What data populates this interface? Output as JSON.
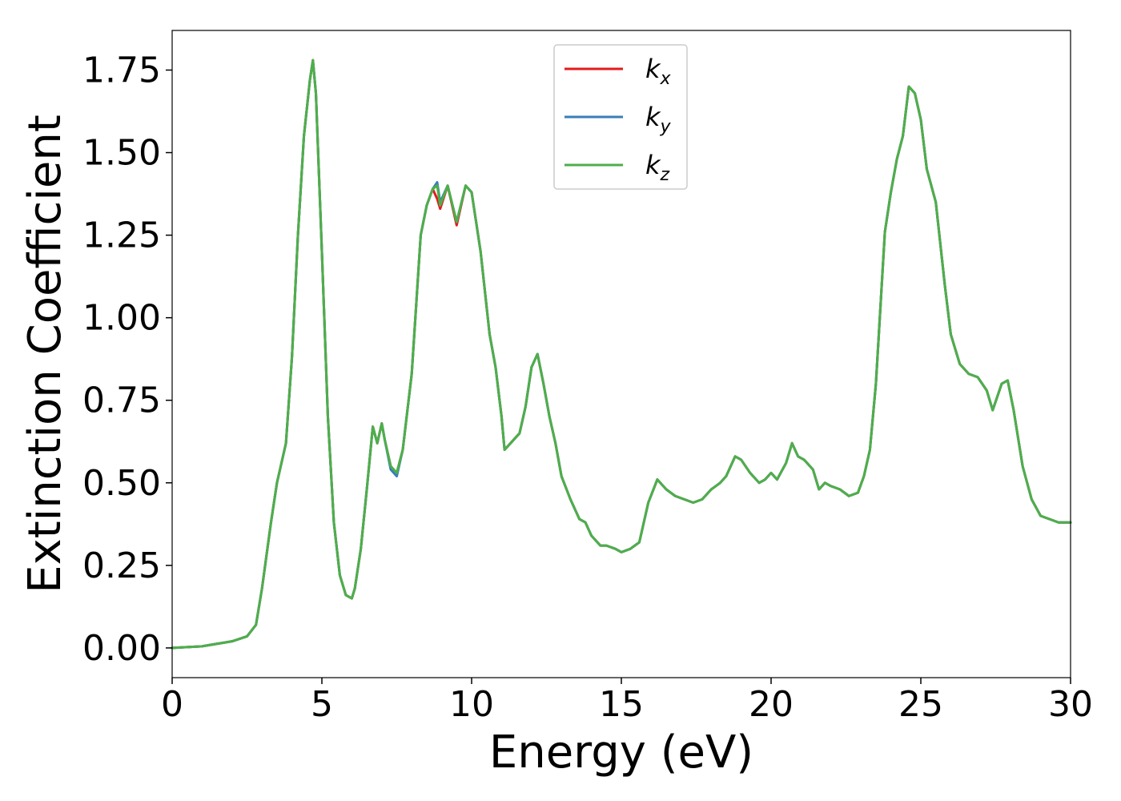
{
  "chart_data": {
    "type": "line",
    "title": "",
    "xlabel": "Energy (eV)",
    "ylabel": "Extinction Coefficient",
    "xlim": [
      0,
      30
    ],
    "ylim": [
      -0.09,
      1.87
    ],
    "xticks": [
      0,
      5,
      10,
      15,
      20,
      25,
      30
    ],
    "xtick_labels": [
      "0",
      "5",
      "10",
      "15",
      "20",
      "25",
      "30"
    ],
    "yticks": [
      0.0,
      0.25,
      0.5,
      0.75,
      1.0,
      1.25,
      1.5,
      1.75
    ],
    "ytick_labels": [
      "0.00",
      "0.25",
      "0.50",
      "0.75",
      "1.00",
      "1.25",
      "1.50",
      "1.75"
    ],
    "grid": false,
    "legend_position": "top-center",
    "series": [
      {
        "name": "k",
        "subscript": "x",
        "color": "#e41a1c",
        "x": [
          0,
          1,
          2,
          2.5,
          2.8,
          3,
          3.3,
          3.5,
          3.8,
          4,
          4.2,
          4.4,
          4.6,
          4.7,
          4.8,
          5,
          5.2,
          5.4,
          5.6,
          5.8,
          6,
          6.1,
          6.3,
          6.5,
          6.7,
          6.85,
          7,
          7.1,
          7.3,
          7.5,
          7.7,
          8,
          8.3,
          8.5,
          8.7,
          8.85,
          8.95,
          9.2,
          9.5,
          9.8,
          10,
          10.3,
          10.6,
          10.8,
          11,
          11.1,
          11.3,
          11.6,
          11.8,
          12,
          12.2,
          12.4,
          12.6,
          12.8,
          13,
          13.3,
          13.6,
          13.8,
          14,
          14.3,
          14.5,
          14.8,
          15,
          15.3,
          15.6,
          15.9,
          16.2,
          16.5,
          16.8,
          17.1,
          17.4,
          17.7,
          18,
          18.3,
          18.5,
          18.8,
          19,
          19.3,
          19.6,
          19.8,
          20,
          20.2,
          20.5,
          20.7,
          20.9,
          21.1,
          21.4,
          21.6,
          21.8,
          22,
          22.3,
          22.6,
          22.9,
          23.1,
          23.3,
          23.5,
          23.8,
          24,
          24.2,
          24.4,
          24.6,
          24.8,
          25,
          25.2,
          25.5,
          25.8,
          26,
          26.3,
          26.6,
          26.9,
          27.2,
          27.4,
          27.7,
          27.9,
          28.1,
          28.4,
          28.7,
          29,
          29.3,
          29.6,
          30
        ],
        "y": [
          0,
          0.005,
          0.02,
          0.035,
          0.07,
          0.18,
          0.38,
          0.5,
          0.62,
          0.88,
          1.25,
          1.55,
          1.72,
          1.78,
          1.68,
          1.2,
          0.7,
          0.38,
          0.22,
          0.16,
          0.15,
          0.18,
          0.3,
          0.48,
          0.67,
          0.62,
          0.68,
          0.63,
          0.55,
          0.53,
          0.6,
          0.83,
          1.25,
          1.34,
          1.39,
          1.36,
          1.33,
          1.4,
          1.28,
          1.4,
          1.38,
          1.2,
          0.95,
          0.85,
          0.7,
          0.6,
          0.62,
          0.65,
          0.73,
          0.85,
          0.89,
          0.8,
          0.7,
          0.62,
          0.52,
          0.45,
          0.39,
          0.38,
          0.34,
          0.31,
          0.31,
          0.3,
          0.29,
          0.3,
          0.32,
          0.44,
          0.51,
          0.48,
          0.46,
          0.45,
          0.44,
          0.45,
          0.48,
          0.5,
          0.52,
          0.58,
          0.57,
          0.53,
          0.5,
          0.51,
          0.53,
          0.51,
          0.56,
          0.62,
          0.58,
          0.57,
          0.54,
          0.48,
          0.5,
          0.49,
          0.48,
          0.46,
          0.47,
          0.52,
          0.6,
          0.8,
          1.26,
          1.38,
          1.48,
          1.55,
          1.7,
          1.68,
          1.6,
          1.45,
          1.35,
          1.1,
          0.95,
          0.86,
          0.83,
          0.82,
          0.78,
          0.72,
          0.8,
          0.81,
          0.72,
          0.55,
          0.45,
          0.4,
          0.39,
          0.38,
          0.38
        ]
      },
      {
        "name": "k",
        "subscript": "y",
        "color": "#377eb8",
        "x": [
          0,
          1,
          2,
          2.5,
          2.8,
          3,
          3.3,
          3.5,
          3.8,
          4,
          4.2,
          4.4,
          4.6,
          4.7,
          4.8,
          5,
          5.2,
          5.4,
          5.6,
          5.8,
          6,
          6.1,
          6.3,
          6.5,
          6.7,
          6.85,
          7,
          7.1,
          7.3,
          7.5,
          7.7,
          8,
          8.3,
          8.5,
          8.7,
          8.85,
          8.95,
          9.2,
          9.5,
          9.8,
          10,
          10.3,
          10.6,
          10.8,
          11,
          11.1,
          11.3,
          11.6,
          11.8,
          12,
          12.2,
          12.4,
          12.6,
          12.8,
          13,
          13.3,
          13.6,
          13.8,
          14,
          14.3,
          14.5,
          14.8,
          15,
          15.3,
          15.6,
          15.9,
          16.2,
          16.5,
          16.8,
          17.1,
          17.4,
          17.7,
          18,
          18.3,
          18.5,
          18.8,
          19,
          19.3,
          19.6,
          19.8,
          20,
          20.2,
          20.5,
          20.7,
          20.9,
          21.1,
          21.4,
          21.6,
          21.8,
          22,
          22.3,
          22.6,
          22.9,
          23.1,
          23.3,
          23.5,
          23.8,
          24,
          24.2,
          24.4,
          24.6,
          24.8,
          25,
          25.2,
          25.5,
          25.8,
          26,
          26.3,
          26.6,
          26.9,
          27.2,
          27.4,
          27.7,
          27.9,
          28.1,
          28.4,
          28.7,
          29,
          29.3,
          29.6,
          30
        ],
        "y": [
          0,
          0.005,
          0.02,
          0.035,
          0.07,
          0.18,
          0.38,
          0.5,
          0.62,
          0.88,
          1.25,
          1.55,
          1.72,
          1.78,
          1.68,
          1.2,
          0.7,
          0.38,
          0.22,
          0.16,
          0.15,
          0.18,
          0.3,
          0.48,
          0.67,
          0.62,
          0.68,
          0.63,
          0.54,
          0.52,
          0.6,
          0.83,
          1.25,
          1.34,
          1.39,
          1.41,
          1.35,
          1.4,
          1.29,
          1.4,
          1.38,
          1.2,
          0.95,
          0.85,
          0.7,
          0.6,
          0.62,
          0.65,
          0.73,
          0.85,
          0.89,
          0.8,
          0.7,
          0.62,
          0.52,
          0.45,
          0.39,
          0.38,
          0.34,
          0.31,
          0.31,
          0.3,
          0.29,
          0.3,
          0.32,
          0.44,
          0.51,
          0.48,
          0.46,
          0.45,
          0.44,
          0.45,
          0.48,
          0.5,
          0.52,
          0.58,
          0.57,
          0.53,
          0.5,
          0.51,
          0.53,
          0.51,
          0.56,
          0.62,
          0.58,
          0.57,
          0.54,
          0.48,
          0.5,
          0.49,
          0.48,
          0.46,
          0.47,
          0.52,
          0.6,
          0.8,
          1.26,
          1.38,
          1.48,
          1.55,
          1.7,
          1.68,
          1.6,
          1.45,
          1.35,
          1.1,
          0.95,
          0.86,
          0.83,
          0.82,
          0.78,
          0.72,
          0.8,
          0.81,
          0.72,
          0.55,
          0.45,
          0.4,
          0.39,
          0.38,
          0.38
        ]
      },
      {
        "name": "k",
        "subscript": "z",
        "color": "#4daf4a",
        "x": [
          0,
          1,
          2,
          2.5,
          2.8,
          3,
          3.3,
          3.5,
          3.8,
          4,
          4.2,
          4.4,
          4.6,
          4.7,
          4.8,
          5,
          5.2,
          5.4,
          5.6,
          5.8,
          6,
          6.1,
          6.3,
          6.5,
          6.7,
          6.85,
          7,
          7.1,
          7.3,
          7.5,
          7.7,
          8,
          8.3,
          8.5,
          8.7,
          8.85,
          8.95,
          9.2,
          9.5,
          9.8,
          10,
          10.3,
          10.6,
          10.8,
          11,
          11.1,
          11.3,
          11.6,
          11.8,
          12,
          12.2,
          12.4,
          12.6,
          12.8,
          13,
          13.3,
          13.6,
          13.8,
          14,
          14.3,
          14.5,
          14.8,
          15,
          15.3,
          15.6,
          15.9,
          16.2,
          16.5,
          16.8,
          17.1,
          17.4,
          17.7,
          18,
          18.3,
          18.5,
          18.8,
          19,
          19.3,
          19.6,
          19.8,
          20,
          20.2,
          20.5,
          20.7,
          20.9,
          21.1,
          21.4,
          21.6,
          21.8,
          22,
          22.3,
          22.6,
          22.9,
          23.1,
          23.3,
          23.5,
          23.8,
          24,
          24.2,
          24.4,
          24.6,
          24.8,
          25,
          25.2,
          25.5,
          25.8,
          26,
          26.3,
          26.6,
          26.9,
          27.2,
          27.4,
          27.7,
          27.9,
          28.1,
          28.4,
          28.7,
          29,
          29.3,
          29.6,
          30
        ],
        "y": [
          0,
          0.005,
          0.02,
          0.035,
          0.07,
          0.18,
          0.38,
          0.5,
          0.62,
          0.88,
          1.25,
          1.55,
          1.72,
          1.78,
          1.68,
          1.2,
          0.7,
          0.38,
          0.22,
          0.16,
          0.15,
          0.18,
          0.3,
          0.48,
          0.67,
          0.62,
          0.68,
          0.63,
          0.55,
          0.53,
          0.6,
          0.83,
          1.25,
          1.34,
          1.39,
          1.4,
          1.34,
          1.4,
          1.29,
          1.4,
          1.38,
          1.2,
          0.95,
          0.85,
          0.7,
          0.6,
          0.62,
          0.65,
          0.73,
          0.85,
          0.89,
          0.8,
          0.7,
          0.62,
          0.52,
          0.45,
          0.39,
          0.38,
          0.34,
          0.31,
          0.31,
          0.3,
          0.29,
          0.3,
          0.32,
          0.44,
          0.51,
          0.48,
          0.46,
          0.45,
          0.44,
          0.45,
          0.48,
          0.5,
          0.52,
          0.58,
          0.57,
          0.53,
          0.5,
          0.51,
          0.53,
          0.51,
          0.56,
          0.62,
          0.58,
          0.57,
          0.54,
          0.48,
          0.5,
          0.49,
          0.48,
          0.46,
          0.47,
          0.52,
          0.6,
          0.8,
          1.26,
          1.38,
          1.48,
          1.55,
          1.7,
          1.68,
          1.6,
          1.45,
          1.35,
          1.1,
          0.95,
          0.86,
          0.83,
          0.82,
          0.78,
          0.72,
          0.8,
          0.81,
          0.72,
          0.55,
          0.45,
          0.4,
          0.39,
          0.38,
          0.38
        ]
      }
    ]
  }
}
